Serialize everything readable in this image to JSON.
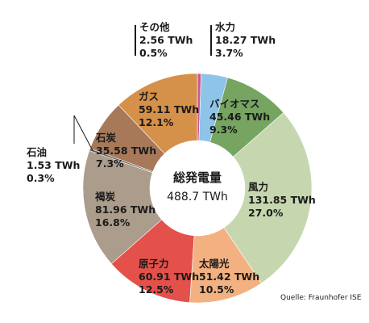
{
  "chart_data": {
    "type": "pie",
    "total": {
      "label": "総発電量",
      "value": "488.7 TWh"
    },
    "slices": [
      {
        "name": "その他",
        "value": 2.56,
        "value_text": "2.56 TWh",
        "percent_text": "0.5%",
        "color": "#c75a93"
      },
      {
        "name": "水力",
        "value": 18.27,
        "value_text": "18.27 TWh",
        "percent_text": "3.7%",
        "color": "#8ec4e8"
      },
      {
        "name": "バイオマス",
        "value": 45.46,
        "value_text": "45.46 TWh",
        "percent_text": "9.3%",
        "color": "#76a461"
      },
      {
        "name": "風力",
        "value": 131.85,
        "value_text": "131.85 TWh",
        "percent_text": "27.0%",
        "color": "#c6d7af"
      },
      {
        "name": "太陽光",
        "value": 51.42,
        "value_text": "51.42 TWh",
        "percent_text": "10.5%",
        "color": "#f3b181"
      },
      {
        "name": "原子力",
        "value": 60.91,
        "value_text": "60.91 TWh",
        "percent_text": "12.5%",
        "color": "#e4504a"
      },
      {
        "name": "褐炭",
        "value": 81.96,
        "value_text": "81.96 TWh",
        "percent_text": "16.8%",
        "color": "#ac9c8b"
      },
      {
        "name": "石油",
        "value": 1.53,
        "value_text": "1.53 TWh",
        "percent_text": "0.3%",
        "color": "#5e5e5e"
      },
      {
        "name": "石炭",
        "value": 35.58,
        "value_text": "35.58 TWh",
        "percent_text": "7.3%",
        "color": "#a77959"
      },
      {
        "name": "ガス",
        "value": 59.11,
        "value_text": "59.11 TWh",
        "percent_text": "12.1%",
        "color": "#d5904a"
      }
    ],
    "source": "Quelle: Fraunhofer ISE"
  }
}
